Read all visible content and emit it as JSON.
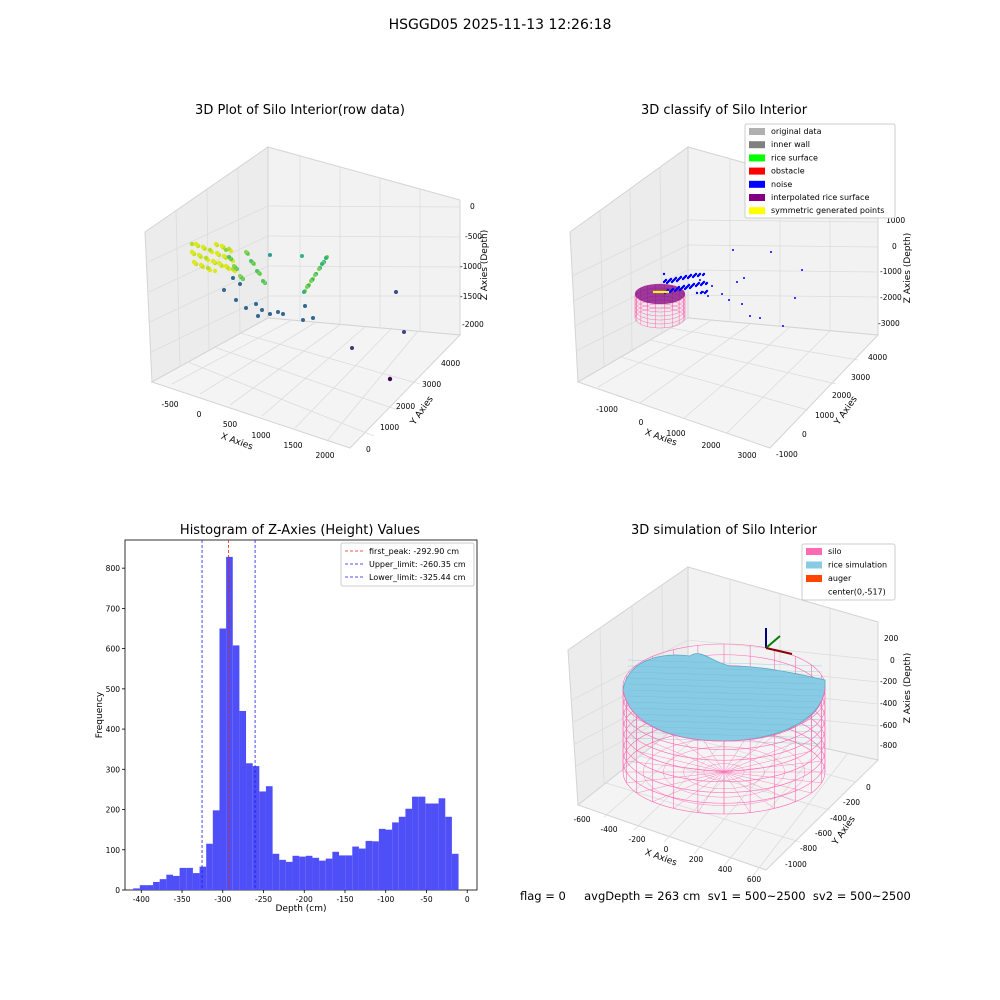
{
  "suptitle": "HSGGD05 2025-11-13 12:26:18",
  "footer": "flag = 0     avgDepth = 263 cm  sv1 = 500~2500  sv2 = 500~2500",
  "colors": {
    "histogram_bar": "#4f4ff7",
    "first_peak": "#e8241c",
    "limits": "#1a1aff",
    "silo": "#ff69b4",
    "rice": "#87cbe4",
    "auger": "#ff4500"
  },
  "chart_data": [
    {
      "type": "scatter",
      "title": "3D Plot of Silo Interior(row data)",
      "xlabel": "X Axies",
      "ylabel": "Y Axies",
      "zlabel": "Z Axies (Depth)",
      "x_ticks": [
        "-500",
        "0",
        "500",
        "1000",
        "1500",
        "2000"
      ],
      "y_ticks": [
        "0",
        "1000",
        "2000",
        "3000",
        "4000"
      ],
      "z_ticks": [
        "0",
        "-500",
        "-1000",
        "-1500",
        "-2000"
      ]
    },
    {
      "type": "scatter",
      "title": "3D classify of Silo Interior",
      "xlabel": "X Axies",
      "ylabel": "Y Axies",
      "zlabel": "Z Axies (Depth)",
      "x_ticks": [
        "-1000",
        "0",
        "1000",
        "2000",
        "3000"
      ],
      "y_ticks": [
        "-1000",
        "0",
        "1000",
        "2000",
        "3000",
        "4000"
      ],
      "z_ticks": [
        "1000",
        "0",
        "-1000",
        "-2000",
        "-3000"
      ],
      "legend": [
        {
          "label": "original data",
          "color": "#b0b0b0"
        },
        {
          "label": "inner wall",
          "color": "#808080"
        },
        {
          "label": "rice surface",
          "color": "#00ff00"
        },
        {
          "label": "obstacle",
          "color": "#ff0000"
        },
        {
          "label": "noise",
          "color": "#0000ff"
        },
        {
          "label": "interpolated rice surface",
          "color": "#800080"
        },
        {
          "label": "symmetric generated points",
          "color": "#ffff00"
        }
      ],
      "legend_position": "upper right"
    },
    {
      "type": "bar",
      "title": "Histogram of Z-Axies (Height) Values",
      "xlabel": "Depth (cm)",
      "ylabel": "Frequency",
      "xlim": [
        -420,
        12
      ],
      "ylim": [
        0,
        870
      ],
      "x_ticks": [
        -400,
        -350,
        -300,
        -250,
        -200,
        -150,
        -100,
        -50,
        0
      ],
      "y_ticks": [
        0,
        100,
        200,
        300,
        400,
        500,
        600,
        700,
        800
      ],
      "bin_start": -410,
      "bin_width": 8.15,
      "values": [
        4,
        12,
        12,
        20,
        27,
        38,
        35,
        55,
        55,
        42,
        58,
        115,
        198,
        650,
        828,
        608,
        445,
        315,
        308,
        245,
        258,
        90,
        75,
        70,
        85,
        83,
        85,
        80,
        73,
        78,
        95,
        86,
        86,
        108,
        103,
        122,
        121,
        152,
        150,
        168,
        182,
        202,
        232,
        232,
        215,
        215,
        228,
        182,
        90
      ],
      "vlines": [
        {
          "label": "first_peak: -292.90 cm",
          "x": -292.9,
          "style": "red"
        },
        {
          "label": "Upper_limit: -260.35 cm",
          "x": -260.35,
          "style": "blue"
        },
        {
          "label": "Lower_limit: -325.44 cm",
          "x": -325.44,
          "style": "blue"
        }
      ],
      "legend_position": "upper right"
    },
    {
      "type": "surface",
      "title": "3D simulation of Silo Interior",
      "xlabel": "X Axies",
      "ylabel": "Y Axies",
      "zlabel": "Z Axies (Depth)",
      "x_ticks": [
        "-600",
        "-400",
        "-200",
        "0",
        "200",
        "400",
        "600"
      ],
      "y_ticks": [
        "0",
        "-200",
        "-400",
        "-600",
        "-800",
        "-1000"
      ],
      "z_ticks": [
        "200",
        "0",
        "-200",
        "-400",
        "-600",
        "-800"
      ],
      "legend": [
        {
          "label": "silo",
          "color": "#ff69b4"
        },
        {
          "label": "rice simulation",
          "color": "#87cbe4"
        },
        {
          "label": "auger",
          "color": "#ff4500"
        },
        {
          "label": "center(0,-517)",
          "color": ""
        }
      ],
      "legend_position": "upper right"
    }
  ]
}
